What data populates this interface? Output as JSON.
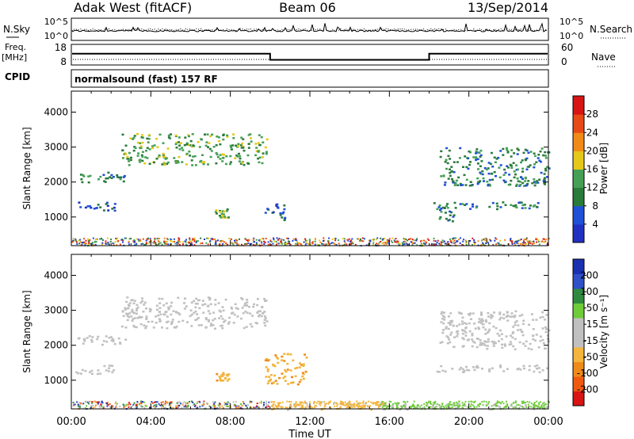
{
  "header": {
    "station": "Adak West (fitACF)",
    "beam": "Beam 06",
    "date": "13/Sep/2014"
  },
  "noise_panel": {
    "left_label": "N.Sky",
    "right_label": "N.Search",
    "left_ticks": [
      "10^5",
      "10^0"
    ],
    "right_ticks": [
      "10^5",
      "10^0"
    ]
  },
  "freq_panel": {
    "left_label_top": "Freq.",
    "left_label_bottom": "[MHz]",
    "right_label": "Nave",
    "left_ticks": [
      "18",
      "8"
    ],
    "right_ticks": [
      "60",
      "0"
    ],
    "freq_high": 13.5,
    "freq_low": 10.5,
    "switch_times_hours": [
      10.0,
      18.0
    ]
  },
  "cpid_panel": {
    "label": "CPID",
    "mode": "normalsound (fast) 157 RF"
  },
  "x_axis": {
    "label": "Time UT",
    "ticks": [
      "00:00",
      "04:00",
      "08:00",
      "12:00",
      "16:00",
      "20:00",
      "00:00"
    ]
  },
  "colors": {
    "power": [
      "#2030c0",
      "#2050d8",
      "#2a7a3a",
      "#45a055",
      "#e6c81a",
      "#f08a18",
      "#e64a16",
      "#d81414"
    ],
    "velocity": [
      "#d81414",
      "#f05a10",
      "#f08a18",
      "#f3b53d",
      "#c0c0c0",
      "#c0c0c0",
      "#6fcb3a",
      "#2f8a3f",
      "#3050c8",
      "#1a30b0"
    ]
  },
  "chart_data": [
    {
      "type": "heatmap",
      "title": "",
      "xlabel": "Time UT",
      "ylabel": "Slant Range [km]",
      "xlim": [
        0,
        24
      ],
      "ylim": [
        180,
        4600
      ],
      "yticks": [
        "1000",
        "2000",
        "3000",
        "4000"
      ],
      "colorbar": {
        "label": "Power [dB]",
        "ticks": [
          "4",
          "8",
          "12",
          "16",
          "20",
          "24",
          "28"
        ],
        "range": [
          0,
          32
        ]
      },
      "echo_regions": [
        {
          "t_start": 0.1,
          "t_end": 2.2,
          "r_min": 1200,
          "r_max": 1450,
          "level": 1
        },
        {
          "t_start": 0.3,
          "t_end": 2.8,
          "r_min": 2000,
          "r_max": 2300,
          "level": 2
        },
        {
          "t_start": 2.5,
          "t_end": 9.8,
          "r_min": 2500,
          "r_max": 3400,
          "level": 3
        },
        {
          "t_start": 7.2,
          "t_end": 7.9,
          "r_min": 1000,
          "r_max": 1250,
          "level": 3
        },
        {
          "t_start": 9.7,
          "t_end": 10.8,
          "r_min": 900,
          "r_max": 1400,
          "level": 1
        },
        {
          "t_start": 18.4,
          "t_end": 19.3,
          "r_min": 900,
          "r_max": 1400,
          "level": 2
        },
        {
          "t_start": 18.2,
          "t_end": 24.0,
          "r_min": 1250,
          "r_max": 1450,
          "level": 2
        },
        {
          "t_start": 18.5,
          "t_end": 24.0,
          "r_min": 1900,
          "r_max": 3000,
          "level": 2
        }
      ]
    },
    {
      "type": "heatmap",
      "title": "",
      "xlabel": "Time UT",
      "ylabel": "Slant Range [km]",
      "xlim": [
        0,
        24
      ],
      "ylim": [
        180,
        4600
      ],
      "yticks": [
        "1000",
        "2000",
        "3000",
        "4000"
      ],
      "colorbar": {
        "label": "Velocity [m s⁻¹]",
        "ticks": [
          "-200",
          "-100",
          "-50",
          "-15",
          "15",
          "50",
          "100",
          "200"
        ],
        "range": [
          -250,
          250
        ]
      },
      "echo_regions": [
        {
          "t_start": 0.1,
          "t_end": 2.2,
          "r_min": 1200,
          "r_max": 1450,
          "velocity": 0
        },
        {
          "t_start": 0.3,
          "t_end": 2.8,
          "r_min": 2000,
          "r_max": 2300,
          "velocity": 0
        },
        {
          "t_start": 2.5,
          "t_end": 9.8,
          "r_min": 2500,
          "r_max": 3400,
          "velocity": 0
        },
        {
          "t_start": 7.2,
          "t_end": 7.9,
          "r_min": 1000,
          "r_max": 1250,
          "velocity": -100
        },
        {
          "t_start": 9.7,
          "t_end": 11.8,
          "r_min": 900,
          "r_max": 1800,
          "velocity": -100
        },
        {
          "t_start": 10.0,
          "t_end": 16.0,
          "r_min": 180,
          "r_max": 400,
          "velocity": -50
        },
        {
          "t_start": 15.5,
          "t_end": 24.0,
          "r_min": 180,
          "r_max": 350,
          "velocity": 20
        },
        {
          "t_start": 18.2,
          "t_end": 24.0,
          "r_min": 1250,
          "r_max": 1450,
          "velocity": 0
        },
        {
          "t_start": 18.5,
          "t_end": 24.0,
          "r_min": 1900,
          "r_max": 3000,
          "velocity": 0
        }
      ]
    }
  ]
}
